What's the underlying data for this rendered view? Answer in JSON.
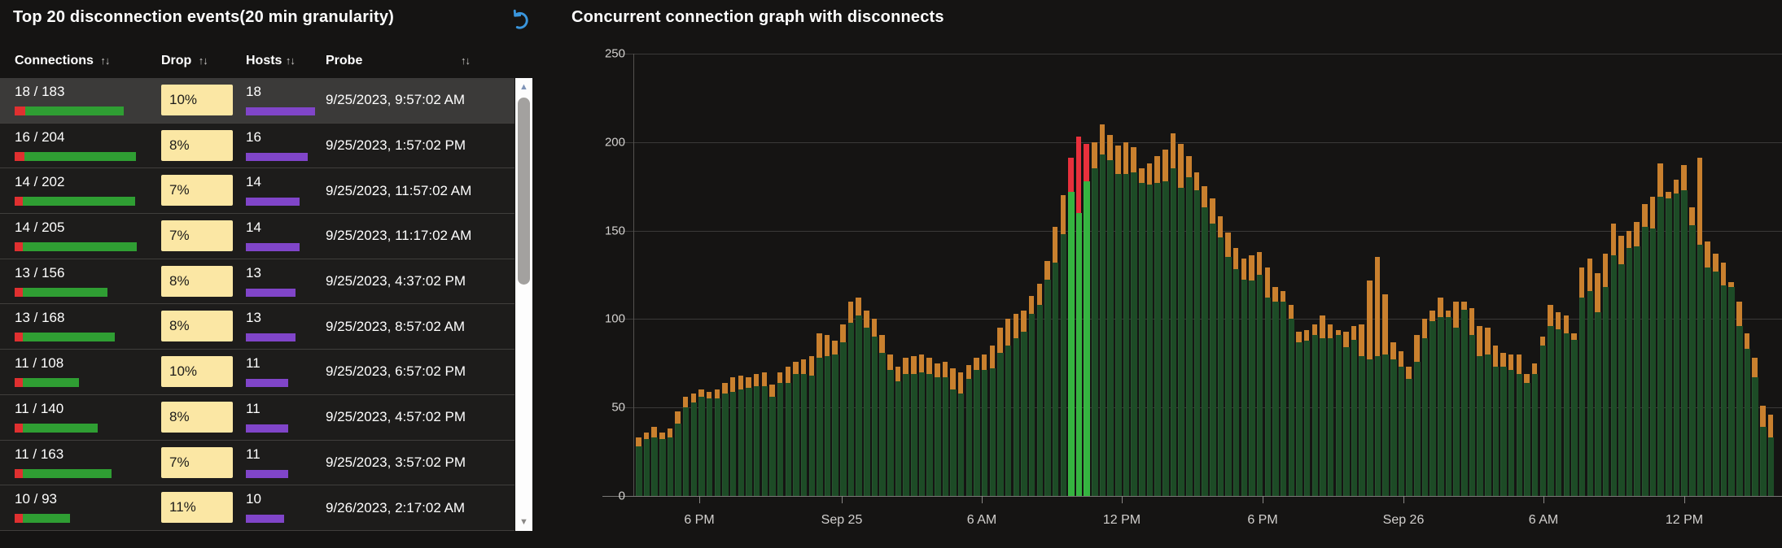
{
  "left_panel": {
    "title": "Top 20 disconnection events(20 min granularity)",
    "refresh_icon_color": "#3a96dd",
    "table": {
      "sort_icon": "↑↓",
      "columns": [
        {
          "label": "Connections",
          "sortable": true
        },
        {
          "label": "Drop",
          "sortable": true
        },
        {
          "label": "Hosts",
          "sortable": true
        },
        {
          "label": "Probe",
          "sortable": true
        }
      ],
      "max_connections": 205,
      "max_hosts": 18,
      "colors": {
        "drop_badge_bg": "#fbe7a4",
        "drop_badge_text": "#1c1b1a",
        "connections_bar_green": "#2f9e33",
        "connections_bar_red": "#e03030",
        "hosts_bar_purple": "#8045c9",
        "selected_row_bg": "#3b3a39"
      },
      "rows": [
        {
          "connections": "18 / 183",
          "total": 183,
          "drops": 18,
          "drop_pct": "10%",
          "hosts": 18,
          "probe": "9/25/2023, 9:57:02 AM",
          "selected": true
        },
        {
          "connections": "16 / 204",
          "total": 204,
          "drops": 16,
          "drop_pct": "8%",
          "hosts": 16,
          "probe": "9/25/2023, 1:57:02 PM",
          "selected": false
        },
        {
          "connections": "14 / 202",
          "total": 202,
          "drops": 14,
          "drop_pct": "7%",
          "hosts": 14,
          "probe": "9/25/2023, 11:57:02 AM",
          "selected": false
        },
        {
          "connections": "14 / 205",
          "total": 205,
          "drops": 14,
          "drop_pct": "7%",
          "hosts": 14,
          "probe": "9/25/2023, 11:17:02 AM",
          "selected": false
        },
        {
          "connections": "13 / 156",
          "total": 156,
          "drops": 13,
          "drop_pct": "8%",
          "hosts": 13,
          "probe": "9/25/2023, 4:37:02 PM",
          "selected": false
        },
        {
          "connections": "13 / 168",
          "total": 168,
          "drops": 13,
          "drop_pct": "8%",
          "hosts": 13,
          "probe": "9/25/2023, 8:57:02 AM",
          "selected": false
        },
        {
          "connections": "11 / 108",
          "total": 108,
          "drops": 11,
          "drop_pct": "10%",
          "hosts": 11,
          "probe": "9/25/2023, 6:57:02 PM",
          "selected": false
        },
        {
          "connections": "11 / 140",
          "total": 140,
          "drops": 11,
          "drop_pct": "8%",
          "hosts": 11,
          "probe": "9/25/2023, 4:57:02 PM",
          "selected": false
        },
        {
          "connections": "11 / 163",
          "total": 163,
          "drops": 11,
          "drop_pct": "7%",
          "hosts": 11,
          "probe": "9/25/2023, 3:57:02 PM",
          "selected": false
        },
        {
          "connections": "10 / 93",
          "total": 93,
          "drops": 10,
          "drop_pct": "11%",
          "hosts": 10,
          "probe": "9/26/2023, 2:17:02 AM",
          "selected": false
        }
      ]
    }
  },
  "chart": {
    "title": "Concurrent connection graph with disconnects"
  },
  "chart_data": {
    "type": "bar",
    "title": "Concurrent connection graph with disconnects",
    "granularity_minutes": 20,
    "x_tick_labels": [
      "6 PM",
      "Sep 25",
      "6 AM",
      "12 PM",
      "6 PM",
      "Sep 26",
      "6 AM",
      "12 PM"
    ],
    "ylim": [
      0,
      250
    ],
    "y_ticks": [
      250,
      200,
      150,
      100,
      50,
      0
    ],
    "grid": true,
    "highlight_indices": [
      55,
      56,
      57
    ],
    "highlight_event": "9/25/2023, 9:57:02 AM",
    "series": [
      {
        "name": "concurrent_connections_total",
        "color": "#1d4b26",
        "highlight_color": "#35b440",
        "values": [
          33,
          36,
          39,
          36,
          38,
          48,
          56,
          58,
          60,
          59,
          60,
          64,
          67,
          68,
          67,
          69,
          70,
          63,
          70,
          73,
          76,
          77,
          79,
          92,
          91,
          88,
          97,
          110,
          112,
          105,
          100,
          91,
          80,
          73,
          78,
          79,
          80,
          78,
          75,
          76,
          72,
          70,
          74,
          78,
          80,
          85,
          95,
          100,
          103,
          105,
          113,
          120,
          133,
          152,
          170,
          191,
          203,
          199,
          200,
          210,
          204,
          198,
          200,
          197,
          185,
          188,
          192,
          196,
          205,
          199,
          192,
          183,
          175,
          168,
          158,
          149,
          140,
          134,
          136,
          138,
          129,
          118,
          116,
          108,
          93,
          94,
          97,
          102,
          97,
          94,
          93,
          96,
          97,
          122,
          135,
          114,
          87,
          82,
          73,
          91,
          100,
          105,
          112,
          105,
          110,
          110,
          106,
          96,
          95,
          85,
          81,
          80,
          80,
          69,
          75,
          90,
          108,
          104,
          102,
          92,
          129,
          134,
          126,
          137,
          154,
          147,
          150,
          155,
          165,
          169,
          188,
          172,
          179,
          187,
          163,
          191,
          144,
          137,
          132,
          121,
          110,
          92,
          78,
          51,
          46
        ]
      },
      {
        "name": "disconnects",
        "color": "#c9802e",
        "highlight_color": "#e8303c",
        "values": [
          5,
          4,
          6,
          4,
          5,
          7,
          6,
          5,
          4,
          4,
          5,
          6,
          8,
          8,
          6,
          7,
          8,
          7,
          6,
          9,
          7,
          8,
          11,
          14,
          12,
          8,
          10,
          12,
          10,
          10,
          10,
          10,
          9,
          8,
          9,
          10,
          10,
          9,
          8,
          9,
          12,
          12,
          8,
          7,
          9,
          13,
          14,
          15,
          14,
          12,
          10,
          12,
          11,
          20,
          22,
          19,
          43,
          21,
          15,
          17,
          14,
          16,
          18,
          14,
          8,
          12,
          15,
          18,
          20,
          25,
          12,
          10,
          12,
          14,
          12,
          14,
          12,
          12,
          14,
          13,
          17,
          8,
          6,
          8,
          6,
          6,
          6,
          13,
          8,
          3,
          9,
          8,
          18,
          45,
          56,
          34,
          10,
          9,
          7,
          15,
          11,
          6,
          11,
          4,
          15,
          5,
          15,
          17,
          15,
          12,
          8,
          9,
          11,
          5,
          6,
          5,
          12,
          10,
          10,
          4,
          17,
          18,
          22,
          19,
          18,
          16,
          10,
          14,
          13,
          18,
          19,
          4,
          8,
          14,
          10,
          49,
          15,
          10,
          13,
          3,
          14,
          9,
          11,
          12,
          13
        ]
      }
    ]
  }
}
